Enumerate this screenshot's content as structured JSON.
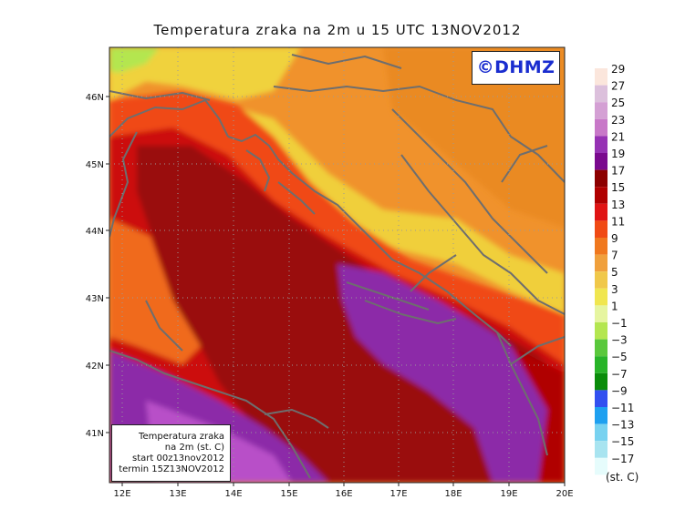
{
  "title": "Temperatura zraka na 2m u 15 UTC 13NOV2012",
  "watermark": "©DHMZ",
  "info_box": {
    "line1": "Temperatura zraka",
    "line2": "na 2m (st. C)",
    "line3": "start 00z13nov2012",
    "line4": "termin 15Z13NOV2012"
  },
  "lat_labels": [
    "46N",
    "45N",
    "44N",
    "43N",
    "42N",
    "41N"
  ],
  "lon_labels": [
    "12E",
    "13E",
    "14E",
    "15E",
    "16E",
    "17E",
    "18E",
    "19E",
    "20E"
  ],
  "colorbar": {
    "unit": "(st. C)",
    "labels": [
      "29",
      "27",
      "25",
      "23",
      "21",
      "19",
      "17",
      "15",
      "13",
      "11",
      "9",
      "7",
      "5",
      "3",
      "1",
      "−1",
      "−3",
      "−5",
      "−7",
      "−9",
      "−11",
      "−13",
      "−15",
      "−17"
    ],
    "colors": [
      "#fbe6dc",
      "#dcc0dc",
      "#d4a0d4",
      "#c878c8",
      "#9632b4",
      "#7a0a8e",
      "#8c0000",
      "#b00000",
      "#e01414",
      "#f04a14",
      "#f0781e",
      "#f0a03c",
      "#f0c84a",
      "#f0e650",
      "#e6f5a0",
      "#b4e650",
      "#5ac83c",
      "#28b428",
      "#0a8c0a",
      "#3250f0",
      "#1ea0f0",
      "#78d2f0",
      "#a8e4f0",
      "#e6fcfc"
    ]
  },
  "field_colors": {
    "deep_red": "#9a0a0a",
    "red": "#cc1010",
    "orange_red": "#f04a14",
    "orange": "#f0922c",
    "yellow": "#f0d23c",
    "purple": "#8c2aa8",
    "light_purple": "#b850c8",
    "coast": "#6e6e6e"
  }
}
